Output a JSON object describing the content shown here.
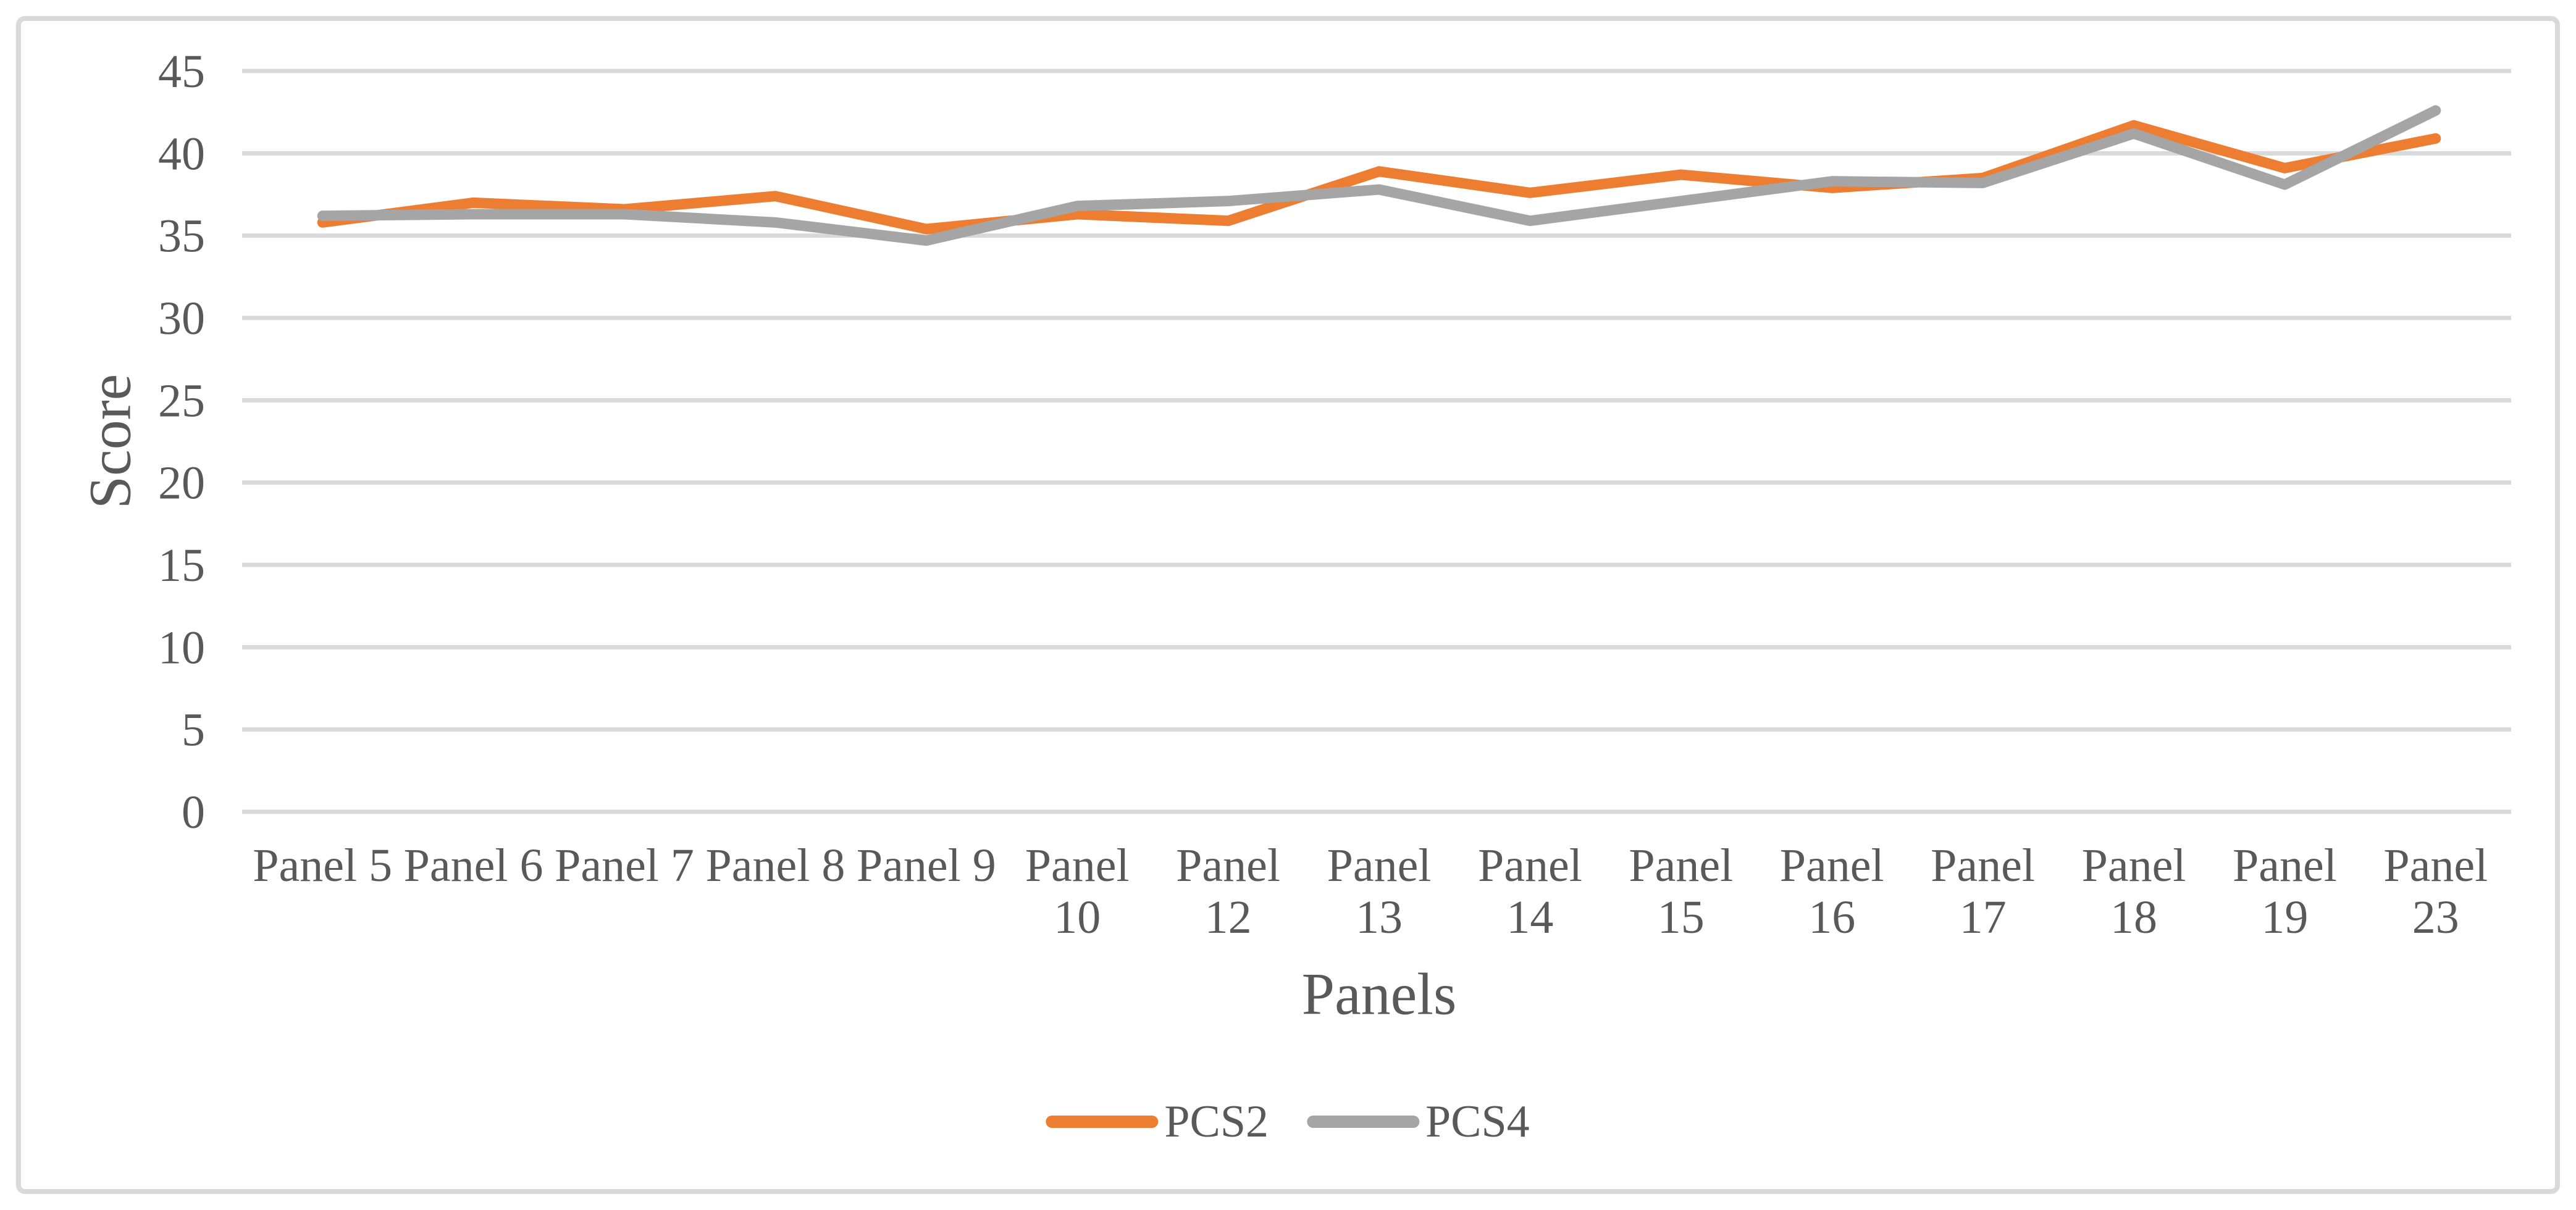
{
  "figure": {
    "background": "#ffffff",
    "border_color": "#d9d9d9"
  },
  "chart_data": {
    "type": "line",
    "title": "",
    "xlabel": "Panels",
    "ylabel": "Score",
    "categories": [
      "Panel 5",
      "Panel 6",
      "Panel 7",
      "Panel 8",
      "Panel 9",
      "Panel 10",
      "Panel 12",
      "Panel 13",
      "Panel 14",
      "Panel 15",
      "Panel 16",
      "Panel 17",
      "Panel 18",
      "Panel 19",
      "Panel 23"
    ],
    "series": [
      {
        "name": "PCS2",
        "color": "#ED7D31",
        "values": [
          35.8,
          37.0,
          36.6,
          37.4,
          35.4,
          36.3,
          35.9,
          38.9,
          37.6,
          38.7,
          37.9,
          38.5,
          41.7,
          39.1,
          40.9
        ]
      },
      {
        "name": "PCS4",
        "color": "#A5A5A5",
        "values": [
          36.2,
          36.3,
          36.3,
          35.8,
          34.7,
          36.8,
          37.1,
          37.8,
          35.9,
          37.1,
          38.3,
          38.2,
          41.2,
          38.1,
          42.6
        ]
      }
    ],
    "ylim": [
      0,
      45
    ],
    "ytick_step": 5,
    "ytick_labels": [
      "0",
      "5",
      "10",
      "15",
      "20",
      "25",
      "30",
      "35",
      "40",
      "45"
    ],
    "grid": true,
    "gridline_color": "#d9d9d9",
    "text_color": "#595959",
    "legend_position": "bottom",
    "line_width": 17
  },
  "legend": {
    "items": [
      {
        "label": "PCS2",
        "color": "#ED7D31"
      },
      {
        "label": "PCS4",
        "color": "#A5A5A5"
      }
    ]
  }
}
